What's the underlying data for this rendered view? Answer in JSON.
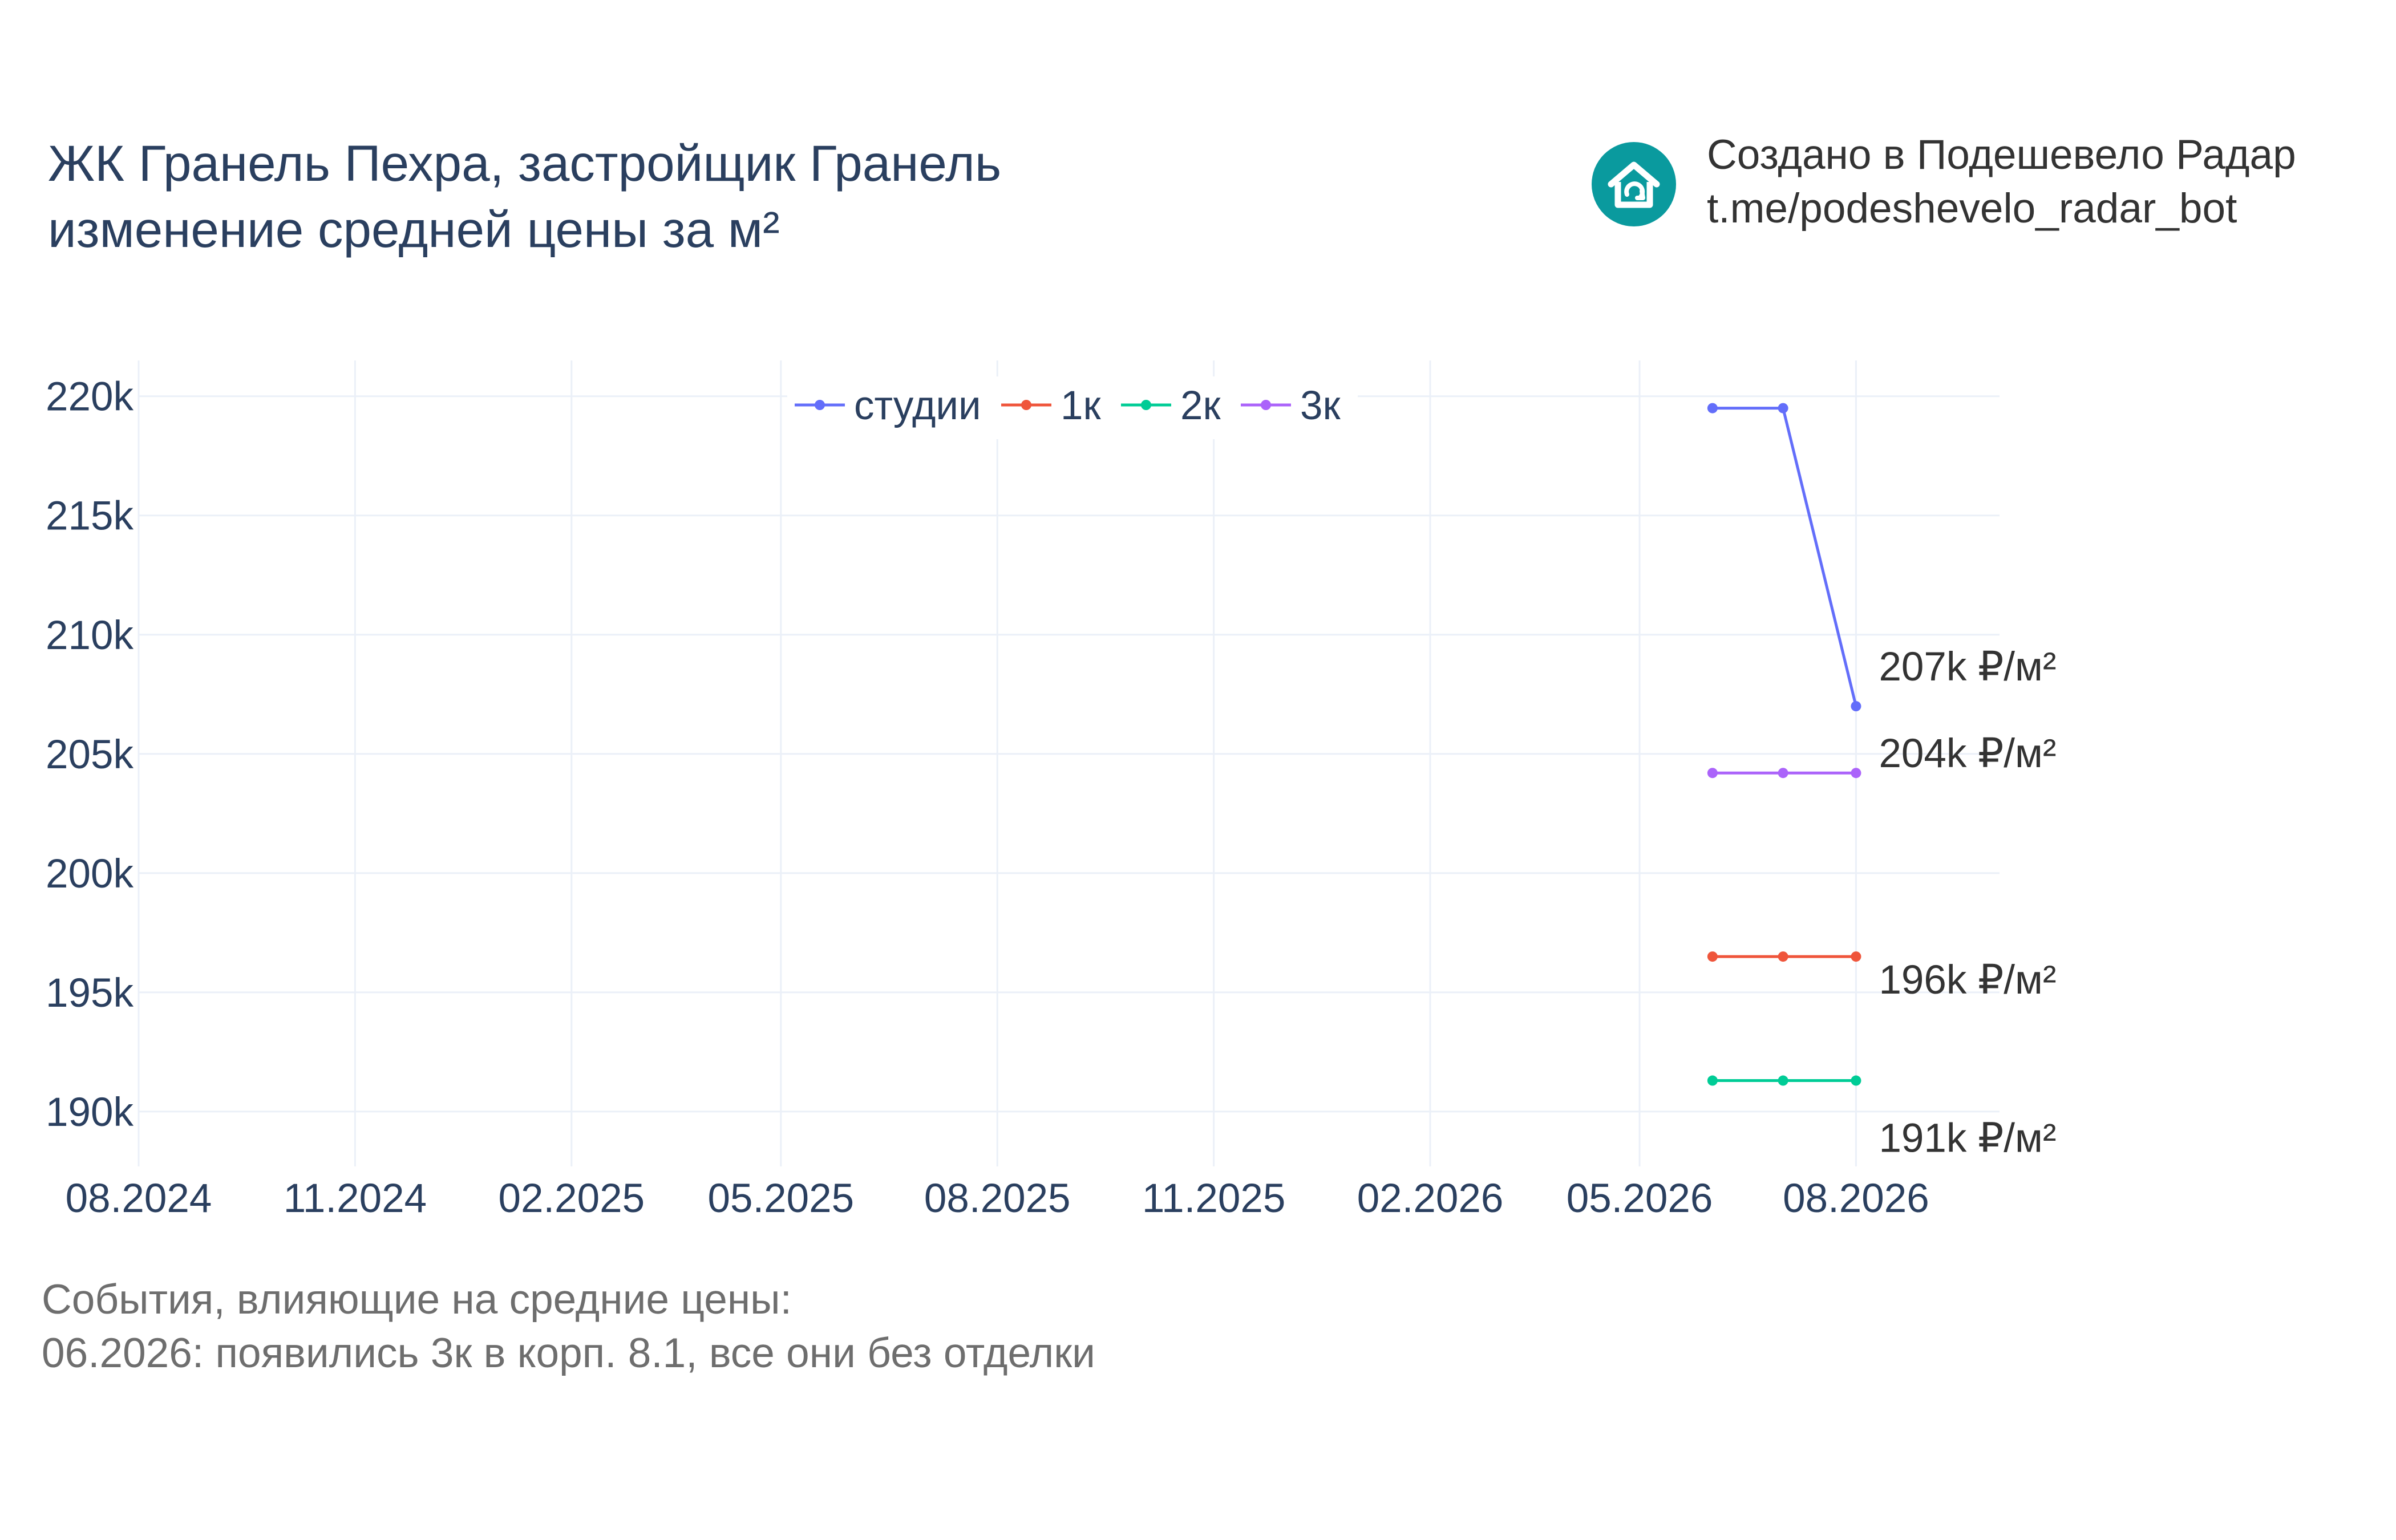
{
  "title": {
    "line1": "ЖК Гранель Пехра, застройщик Гранель",
    "line2": "изменение средней цены за м²"
  },
  "brand": {
    "line1": "Создано в Подешевело Радар",
    "line2": "t.me/podeshevelo_radar_bot",
    "icon": "house-refresh-icon",
    "icon_color": "#0a9a9e"
  },
  "events": {
    "heading": "События, влияющие на средние цены:",
    "items": [
      "06.2026: появились 3к в корп. 8.1, все они без отделки"
    ]
  },
  "chart_data": {
    "type": "line",
    "x_ticks": [
      "08.2024",
      "11.2024",
      "02.2025",
      "05.2025",
      "08.2025",
      "11.2025",
      "02.2026",
      "05.2026",
      "08.2026"
    ],
    "y_ticks": [
      "190k",
      "195k",
      "200k",
      "205k",
      "210k",
      "215k",
      "220k"
    ],
    "ylim": [
      187700,
      221500
    ],
    "xlim": [
      "2024-08-01",
      "2026-10-01"
    ],
    "grid": true,
    "legend_placement": "top-center",
    "x": [
      "2026-06-01",
      "2026-07-01",
      "2026-08-01"
    ],
    "series": [
      {
        "name": "студии",
        "color": "#636efa",
        "values": [
          219500,
          219500,
          207000
        ],
        "end_label": "207k ₽/м²"
      },
      {
        "name": "1к",
        "color": "#ef553b",
        "values": [
          196500,
          196500,
          196500
        ],
        "end_label": "196k ₽/м²"
      },
      {
        "name": "2к",
        "color": "#00cc96",
        "values": [
          191300,
          191300,
          191300
        ],
        "end_label": "191k ₽/м²"
      },
      {
        "name": "3к",
        "color": "#ab63fa",
        "values": [
          204200,
          204200,
          204200
        ],
        "end_label": "204k ₽/м²"
      }
    ]
  }
}
